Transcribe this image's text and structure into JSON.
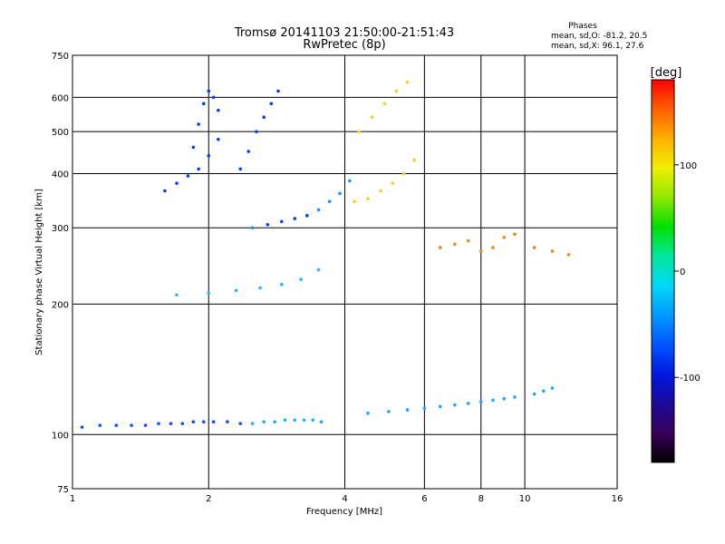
{
  "chart_data": {
    "type": "scatter",
    "title": "Tromsø 20141103 21:50:00-21:51:43",
    "subtitle": "RwPretec (8p)",
    "stats_header": "Phases",
    "stats_o": "mean, sd,O: -81.2, 20.5",
    "stats_x": "mean, sd,X:  96.1, 27.6",
    "xlabel": "Frequency [MHz]",
    "ylabel": "Stationary phase Virtual Height [km]",
    "x_scale": "log",
    "y_scale": "log",
    "xlim": [
      1,
      16
    ],
    "ylim": [
      75,
      750
    ],
    "x_ticks": [
      1,
      2,
      4,
      6,
      8,
      10,
      16
    ],
    "x_grid": [
      2,
      4,
      6,
      8,
      10
    ],
    "y_ticks": [
      75,
      100,
      200,
      300,
      400,
      500,
      600,
      750
    ],
    "y_grid": [
      100,
      200,
      300,
      400,
      500,
      600
    ],
    "grid": true,
    "colorbar": {
      "label": "[deg]",
      "range": [
        -180,
        180
      ],
      "ticks": [
        100,
        0,
        -100
      ],
      "colors": [
        "#000000",
        "#3a0058",
        "#1a0a9a",
        "#0018e0",
        "#0055ff",
        "#0099ff",
        "#00d8f8",
        "#00e8a0",
        "#00e000",
        "#90e800",
        "#f0f000",
        "#ffb000",
        "#ff6000",
        "#ff0000"
      ]
    },
    "series": [
      {
        "x": [
          1.05,
          1.15,
          1.25,
          1.35,
          1.45,
          1.55,
          1.65,
          1.75,
          1.85,
          1.95,
          2.05,
          2.2,
          2.35,
          2.5,
          2.65,
          2.8,
          2.95,
          3.1,
          3.25,
          3.4,
          3.55
        ],
        "y": [
          104,
          105,
          105,
          105,
          105,
          106,
          106,
          106,
          107,
          107,
          107,
          107,
          106,
          106,
          107,
          107,
          108,
          108,
          108,
          108,
          107
        ]
      },
      {
        "x": [
          1.6,
          1.7,
          1.8,
          1.9,
          2.0,
          2.1
        ],
        "y": [
          365,
          380,
          395,
          410,
          440,
          480
        ]
      },
      {
        "x": [
          1.85,
          1.9,
          1.95,
          2.0,
          2.05,
          2.1
        ],
        "y": [
          460,
          520,
          580,
          620,
          600,
          560
        ]
      },
      {
        "x": [
          2.35,
          2.45,
          2.55,
          2.65,
          2.75,
          2.85
        ],
        "y": [
          410,
          450,
          500,
          540,
          580,
          620
        ]
      },
      {
        "x": [
          2.5,
          2.7,
          2.9,
          3.1,
          3.3,
          3.5,
          3.7,
          3.9,
          4.1
        ],
        "y": [
          300,
          305,
          310,
          315,
          320,
          330,
          345,
          360,
          385
        ]
      },
      {
        "x": [
          1.7,
          2.0,
          2.3,
          2.6,
          2.9,
          3.2,
          3.5
        ],
        "y": [
          210,
          212,
          215,
          218,
          222,
          228,
          240
        ]
      },
      {
        "x": [
          4.2,
          4.5,
          4.8,
          5.1,
          5.4,
          5.7
        ],
        "y": [
          345,
          350,
          365,
          380,
          400,
          430
        ]
      },
      {
        "x": [
          4.3,
          4.6,
          4.9,
          5.2,
          5.5
        ],
        "y": [
          500,
          540,
          580,
          620,
          650
        ]
      },
      {
        "x": [
          6.5,
          7.0,
          7.5,
          8.0,
          8.5,
          9.0,
          9.5,
          10.5,
          11.5,
          12.5
        ],
        "y": [
          270,
          275,
          280,
          265,
          270,
          285,
          290,
          270,
          265,
          260
        ]
      },
      {
        "x": [
          4.5,
          5.0,
          5.5,
          6.0,
          6.5,
          7.0,
          7.5,
          8.0,
          8.5,
          9.0,
          9.5,
          10.5,
          11.0,
          11.5
        ],
        "y": [
          112,
          113,
          114,
          115,
          116,
          117,
          118,
          119,
          120,
          121,
          122,
          124,
          126,
          128
        ]
      }
    ]
  }
}
